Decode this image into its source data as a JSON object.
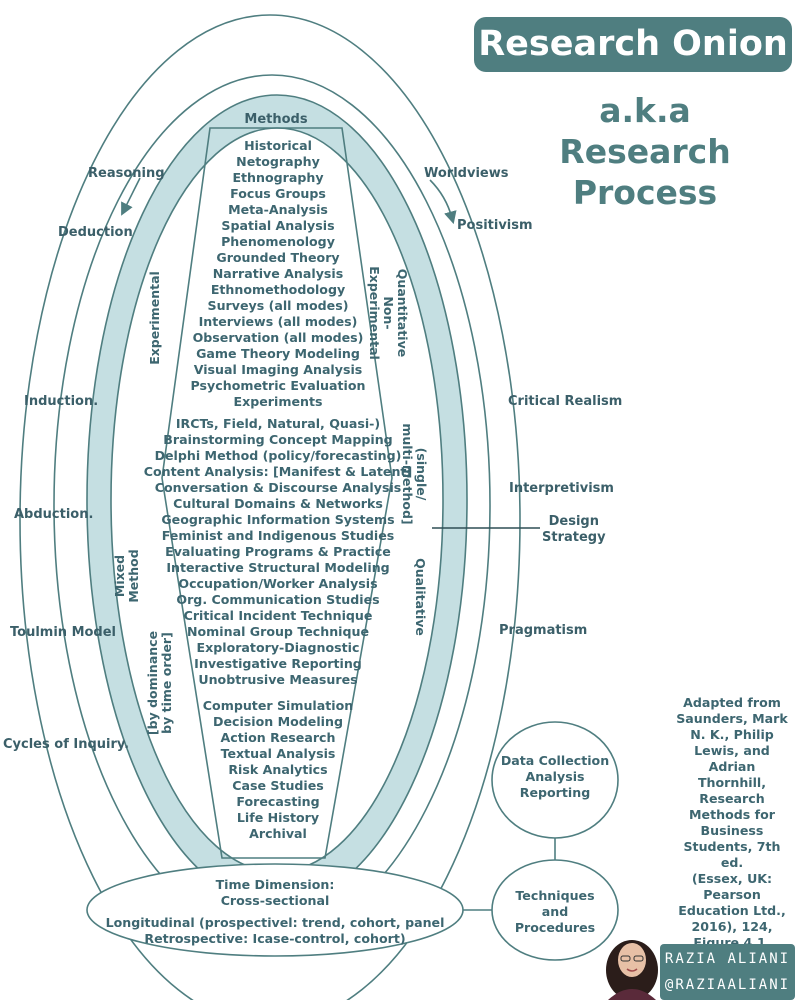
{
  "title": "Research Onion",
  "subtitle_lines": [
    "a.k.a",
    "Research",
    "Process"
  ],
  "colors": {
    "brand": "#4f7e80",
    "ring_fill": "#c5dfe2",
    "text": "#3d6670"
  },
  "reasoning": {
    "header": "Reasoning",
    "items": [
      "Deduction",
      "Induction.",
      "Abduction.",
      "Toulmin Model",
      "Cycles of Inquiry."
    ]
  },
  "worldviews": {
    "header": "Worldviews",
    "items": [
      "Positivism",
      "Critical Realism",
      "Interpretivism",
      "Pragmatism"
    ]
  },
  "design_strategy": [
    "Design",
    "Strategy"
  ],
  "methods": {
    "header": "Methods",
    "group1": [
      "Historical",
      "Netography",
      "Ethnography",
      "Focus Groups",
      "Meta-Analysis",
      "Spatial Analysis",
      "Phenomenology",
      "Grounded Theory",
      "Narrative Analysis",
      "Ethnomethodology",
      "Surveys (all modes)",
      "Interviews (all modes)",
      "Observation (all modes)",
      "Game Theory Modeling",
      "Visual Imaging Analysis",
      "Psychometric Evaluation",
      "Experiments"
    ],
    "group2": [
      "IRCTs, Field, Natural, Quasi-)",
      "Brainstorming Concept Mapping",
      "Delphi Method (policy/forecasting)",
      "Content Analysis: [Manifest & Latent]",
      "Conversation & Discourse Analysis",
      "Cultural Domains & Networks",
      "Geographic Information Systems",
      "Feminist and Indigenous Studies",
      "Evaluating Programs & Practice",
      "Interactive Structural Modeling",
      "Occupation/Worker Analysis",
      "Org. Communication Studies",
      "Critical Incident Technique",
      "Nominal Group Technique",
      "Exploratory-Diagnostic",
      "Investigative Reporting",
      "Unobtrusive Measures"
    ],
    "group3": [
      "Computer Simulation",
      "Decision Modeling",
      "Action Research",
      "Textual Analysis",
      "Risk Analytics",
      "Case Studies",
      "Forecasting",
      "Life History",
      "Archival"
    ]
  },
  "vertical_labels": {
    "experimental": "Experimental",
    "mixed_method": [
      "Mixed",
      "Method"
    ],
    "dominance": [
      "[by dominance",
      "by time order]"
    ],
    "quantitative": [
      "Quantitative",
      "Non-",
      "Experimental"
    ],
    "single_multi": [
      "(single/",
      "multi-method]"
    ],
    "qualitative": "Qualitative"
  },
  "time_dimension": {
    "header": "Time Dimension:",
    "lines": [
      "Cross-sectional",
      "",
      "Longitudinal (prospectivel: trend, cohort, panel",
      "Retrospective: Icase-control, cohort)"
    ]
  },
  "data_collection": [
    "Data Collection",
    "Analysis",
    "Reporting"
  ],
  "techniques": [
    "Techniques",
    "and",
    "Procedures"
  ],
  "credit_lines": [
    "Adapted from",
    "Saunders, Mark",
    "N. K., Philip",
    "Lewis, and Adrian",
    "Thornhill,",
    "Research",
    "Methods for",
    "Business",
    "Students, 7th ed.",
    "(Essex, UK:",
    "Pearson",
    "Education Ltd.,",
    "2016), 124,",
    "Figure 4.1."
  ],
  "author": {
    "name": "RAZIA ALIANI",
    "handle": "@RAZIAALIANI"
  }
}
